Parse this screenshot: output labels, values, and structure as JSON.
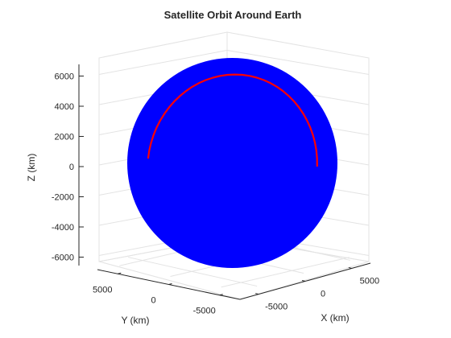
{
  "chart_data": {
    "type": "3d-surface-line",
    "title": "Satellite Orbit Around Earth",
    "xlabel": "X (km)",
    "ylabel": "Y (km)",
    "zlabel": "Z (km)",
    "xlim": [
      -7000,
      7000
    ],
    "ylim": [
      -7000,
      7000
    ],
    "zlim": [
      -6400,
      6400
    ],
    "xticks": [
      -5000,
      0,
      5000
    ],
    "yticks": [
      5000,
      0,
      -5000
    ],
    "zticks": [
      6000,
      4000,
      2000,
      0,
      -2000,
      -4000,
      -6000
    ],
    "xtick_labels": [
      "-5000",
      "0",
      "5000"
    ],
    "ytick_labels": [
      "5000",
      "0",
      "-5000"
    ],
    "ztick_labels": [
      "6000",
      "4000",
      "2000",
      "0",
      "-2000",
      "-4000",
      "-6000"
    ],
    "grid": true,
    "series": [
      {
        "name": "Earth",
        "kind": "sphere",
        "center": [
          0,
          0,
          0
        ],
        "radius_km": 6371,
        "color": "#0000ff"
      },
      {
        "name": "Orbit",
        "kind": "circle",
        "radius_km": 6950,
        "inclination_deg": 45,
        "color": "#ff0000"
      }
    ]
  }
}
